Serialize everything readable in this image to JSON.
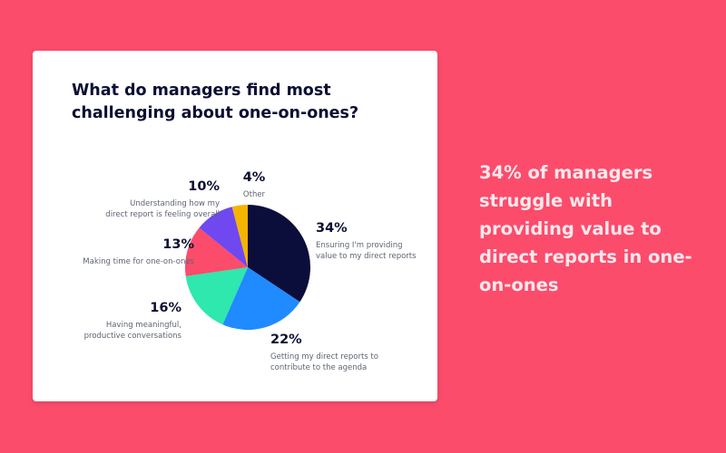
{
  "card": {
    "title": "What do managers find most challenging about one-on-ones?"
  },
  "headline": "34% of managers struggle with providing value to direct reports in one-on-ones",
  "colors": {
    "background": "#fb4c6c",
    "card": "#ffffff",
    "headline": "#ffe8ec"
  },
  "chart_data": {
    "type": "pie",
    "title": "What do managers find most challenging about one-on-ones?",
    "start": "top, clockwise",
    "slices": [
      {
        "pct_label": "34%",
        "value": 34,
        "text": [
          "Ensuring I'm providing",
          "value to my direct reports"
        ],
        "color": "#0b0e3a",
        "label_side": "right"
      },
      {
        "pct_label": "22%",
        "value": 22,
        "text": [
          "Getting my direct reports to",
          "contribute to the agenda"
        ],
        "color": "#1f8bff",
        "label_side": "right"
      },
      {
        "pct_label": "16%",
        "value": 16,
        "text": [
          "Having meaningful,",
          "productive conversations"
        ],
        "color": "#2ee8ad",
        "label_side": "left"
      },
      {
        "pct_label": "13%",
        "value": 13,
        "text": [
          "Making time for one-on-ones"
        ],
        "color": "#fb4c6c",
        "label_side": "left"
      },
      {
        "pct_label": "10%",
        "value": 10,
        "text": [
          "Understanding how my",
          "direct report is feeling overall"
        ],
        "color": "#7048f0",
        "label_side": "left"
      },
      {
        "pct_label": "4%",
        "value": 4,
        "text": [
          "Other"
        ],
        "color": "#f4b400",
        "label_side": "center"
      }
    ]
  }
}
